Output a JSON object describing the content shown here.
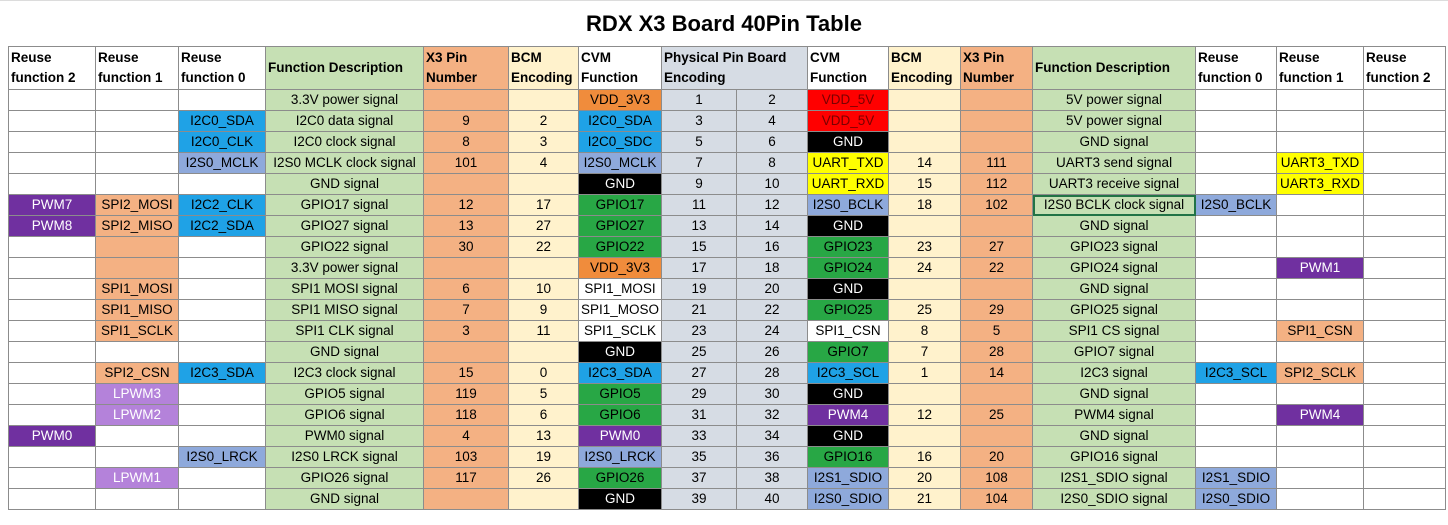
{
  "title": "RDX X3 Board 40Pin Table",
  "headers": [
    "Reuse function 2",
    "Reuse function 1",
    "Reuse function 0",
    "Function Description",
    "X3 Pin Number",
    "BCM Encoding",
    "CVM Function",
    "Physical Pin Board Encoding",
    "CVM Function",
    "BCM Encoding",
    "X3 Pin Number",
    "Function Description",
    "Reuse function 0",
    "Reuse function 1",
    "Reuse function 2"
  ],
  "rows": [
    [
      "",
      "",
      "",
      "3.3V power signal",
      "",
      "",
      "VDD_3V3",
      "1",
      "2",
      "VDD_5V",
      "",
      "",
      "5V power signal",
      "",
      "",
      ""
    ],
    [
      "",
      "",
      "I2C0_SDA",
      "I2C0 data signal",
      "9",
      "2",
      "I2C0_SDA",
      "3",
      "4",
      "VDD_5V",
      "",
      "",
      "5V power signal",
      "",
      "",
      ""
    ],
    [
      "",
      "",
      "I2C0_CLK",
      "I2C0 clock signal",
      "8",
      "3",
      "I2C0_SDC",
      "5",
      "6",
      "GND",
      "",
      "",
      "GND signal",
      "",
      "",
      ""
    ],
    [
      "",
      "",
      "I2S0_MCLK",
      "I2S0 MCLK clock signal",
      "101",
      "4",
      "I2S0_MCLK",
      "7",
      "8",
      "UART_TXD",
      "14",
      "111",
      "UART3 send signal",
      "",
      "UART3_TXD",
      ""
    ],
    [
      "",
      "",
      "",
      "GND signal",
      "",
      "",
      "GND",
      "9",
      "10",
      "UART_RXD",
      "15",
      "112",
      "UART3 receive signal",
      "",
      "UART3_RXD",
      ""
    ],
    [
      "PWM7",
      "SPI2_MOSI",
      "I2C2_CLK",
      "GPIO17 signal",
      "12",
      "17",
      "GPIO17",
      "11",
      "12",
      "I2S0_BCLK",
      "18",
      "102",
      "I2S0 BCLK clock signal",
      "I2S0_BCLK",
      "",
      ""
    ],
    [
      "PWM8",
      "SPI2_MISO",
      "I2C2_SDA",
      "GPIO27 signal",
      "13",
      "27",
      "GPIO27",
      "13",
      "14",
      "GND",
      "",
      "",
      "GND signal",
      "",
      "",
      ""
    ],
    [
      "",
      "",
      "",
      "GPIO22 signal",
      "30",
      "22",
      "GPIO22",
      "15",
      "16",
      "GPIO23",
      "23",
      "27",
      "GPIO23 signal",
      "",
      "",
      ""
    ],
    [
      "",
      "",
      "",
      "3.3V power signal",
      "",
      "",
      "VDD_3V3",
      "17",
      "18",
      "GPIO24",
      "24",
      "22",
      "GPIO24 signal",
      "",
      "PWM1",
      ""
    ],
    [
      "",
      "SPI1_MOSI",
      "",
      "SPI1 MOSI signal",
      "6",
      "10",
      "SPI1_MOSI",
      "19",
      "20",
      "GND",
      "",
      "",
      "GND signal",
      "",
      "",
      ""
    ],
    [
      "",
      "SPI1_MISO",
      "",
      "SPI1 MISO signal",
      "7",
      "9",
      "SPI1_MOSO",
      "21",
      "22",
      "GPIO25",
      "25",
      "29",
      "GPIO25 signal",
      "",
      "",
      ""
    ],
    [
      "",
      "SPI1_SCLK",
      "",
      "SPI1 CLK signal",
      "3",
      "11",
      "SPI1_SCLK",
      "23",
      "24",
      "SPI1_CSN",
      "8",
      "5",
      "SPI1 CS signal",
      "",
      "SPI1_CSN",
      ""
    ],
    [
      "",
      "",
      "",
      "GND signal",
      "",
      "",
      "GND",
      "25",
      "26",
      "GPIO7",
      "7",
      "28",
      "GPIO7 signal",
      "",
      "",
      ""
    ],
    [
      "",
      "SPI2_CSN",
      "I2C3_SDA",
      "I2C3 clock signal",
      "15",
      "0",
      "I2C3_SDA",
      "27",
      "28",
      "I2C3_SCL",
      "1",
      "14",
      "I2C3 signal",
      "I2C3_SCL",
      "SPI2_SCLK",
      ""
    ],
    [
      "",
      "LPWM3",
      "",
      "GPIO5 signal",
      "119",
      "5",
      "GPIO5",
      "29",
      "30",
      "GND",
      "",
      "",
      "GND signal",
      "",
      "",
      ""
    ],
    [
      "",
      "LPWM2",
      "",
      "GPIO6 signal",
      "118",
      "6",
      "GPIO6",
      "31",
      "32",
      "PWM4",
      "12",
      "25",
      "PWM4 signal",
      "",
      "PWM4",
      ""
    ],
    [
      "PWM0",
      "",
      "",
      "PWM0 signal",
      "4",
      "13",
      "PWM0",
      "33",
      "34",
      "GND",
      "",
      "",
      "GND signal",
      "",
      "",
      ""
    ],
    [
      "",
      "",
      "I2S0_LRCK",
      "I2S0 LRCK signal",
      "103",
      "19",
      "I2S0_LRCK",
      "35",
      "36",
      "GPIO16",
      "16",
      "20",
      "GPIO16 signal",
      "",
      "",
      ""
    ],
    [
      "",
      "LPWM1",
      "",
      "GPIO26 signal",
      "117",
      "26",
      "GPIO26",
      "37",
      "38",
      "I2S1_SDIO",
      "20",
      "108",
      "I2S1_SDIO signal",
      "I2S1_SDIO",
      "",
      ""
    ],
    [
      "",
      "",
      "",
      "GND signal",
      "",
      "",
      "GND",
      "39",
      "40",
      "I2S0_SDIO",
      "21",
      "104",
      "I2S0_SDIO signal",
      "I2S0_SDIO",
      "",
      ""
    ]
  ],
  "colors": {
    "description": "#c6e0b4",
    "x3_pin": "#f4b183",
    "bcm": "#fff2cc",
    "physical": "#d6dce4",
    "power_3v3": "#f08c3c",
    "power_5v": "#ff0000",
    "gnd": "#000000",
    "gpio": "#28a745",
    "i2c": "#1fa2e6",
    "i2s": "#8ea9db",
    "uart": "#ffff00",
    "pwm": "#7030a0",
    "lpwm": "#b482da",
    "spi": "#f4b183"
  }
}
